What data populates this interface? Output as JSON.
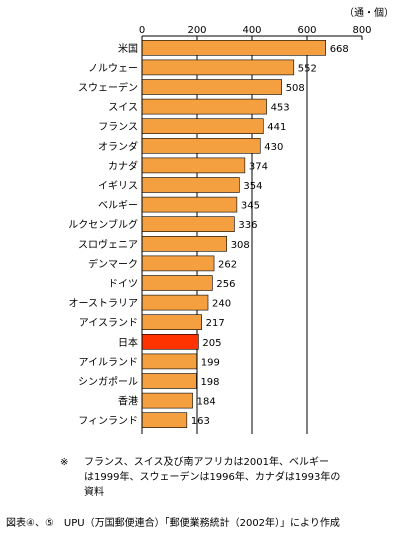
{
  "chart_data": {
    "type": "bar",
    "orientation": "horizontal",
    "unit_label": "（通・個）",
    "xlim": [
      0,
      800
    ],
    "x_ticks": [
      "0",
      "200",
      "400",
      "600",
      "800"
    ],
    "categories": [
      "米国",
      "ノルウェー",
      "スウェーデン",
      "スイス",
      "フランス",
      "オランダ",
      "カナダ",
      "イギリス",
      "ベルギー",
      "ルクセンブルグ",
      "スロヴェニア",
      "デンマーク",
      "ドイツ",
      "オーストラリア",
      "アイスランド",
      "日本",
      "アイルランド",
      "シンガポール",
      "香港",
      "フィンランド"
    ],
    "values": [
      668,
      552,
      508,
      453,
      441,
      430,
      374,
      354,
      345,
      336,
      308,
      262,
      256,
      240,
      217,
      205,
      199,
      198,
      184,
      163
    ],
    "value_labels": [
      "668",
      "552",
      "508",
      "453",
      "441",
      "430",
      "374",
      "354",
      "345",
      "336",
      "308",
      "262",
      "256",
      "240",
      "217",
      "205",
      "199",
      "198",
      "184",
      "163"
    ],
    "bar_color": "#F5A040",
    "highlight_category": "日本",
    "highlight_color": "#FF3300",
    "grid": "vertical lines at 200, 400, 600"
  },
  "note": {
    "mark": "※",
    "lines": [
      "フランス、スイス及び南アフリカは2001年、ベルギー",
      "は1999年、スウェーデンは1996年、カナダは1993年の",
      "資料"
    ]
  },
  "source": "図表④、⑤　UPU（万国郵便連合）「郵便業務統計（2002年）」により作成"
}
